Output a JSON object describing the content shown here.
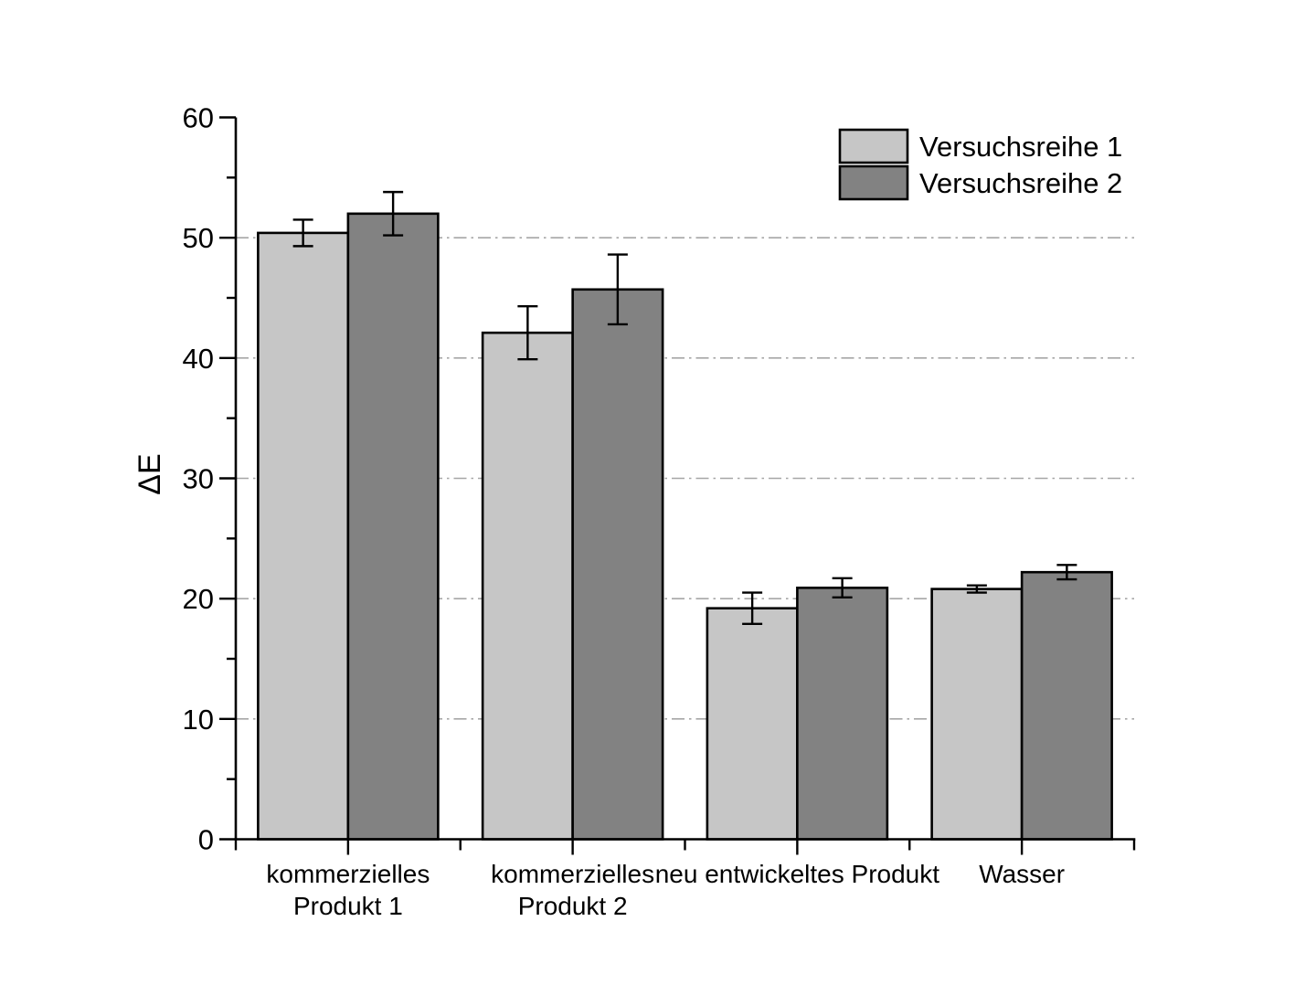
{
  "chart_data": {
    "type": "bar",
    "title": "",
    "xlabel": "",
    "ylabel": "ΔE",
    "ylim": [
      0,
      60
    ],
    "yticks_major": [
      0,
      10,
      20,
      30,
      40,
      50,
      60
    ],
    "yticks_minor": [
      5,
      15,
      25,
      35,
      45,
      55
    ],
    "gridlines_at": [
      10,
      20,
      30,
      40,
      50
    ],
    "grid_style": "dash-dot",
    "grid_on": true,
    "legend_position": "top-right",
    "categories": [
      {
        "label_lines": [
          "kommerzielles",
          "Produkt 1"
        ]
      },
      {
        "label_lines": [
          "kommerzielles",
          "Produkt 2"
        ]
      },
      {
        "label_lines": [
          "neu entwickeltes Produkt"
        ]
      },
      {
        "label_lines": [
          "Wasser"
        ]
      }
    ],
    "series": [
      {
        "name": "Versuchsreihe 1",
        "color": "#c6c6c6",
        "values": [
          50.4,
          42.1,
          19.2,
          20.8
        ],
        "errors": [
          1.1,
          2.2,
          1.3,
          0.3
        ]
      },
      {
        "name": "Versuchsreihe 2",
        "color": "#828282",
        "values": [
          52.0,
          45.7,
          20.9,
          22.2
        ],
        "errors": [
          1.8,
          2.9,
          0.8,
          0.6
        ]
      }
    ],
    "colors": {
      "axis": "#000000",
      "grid": "#a6a6a6",
      "bar_border": "#000000",
      "background": "#ffffff"
    }
  }
}
